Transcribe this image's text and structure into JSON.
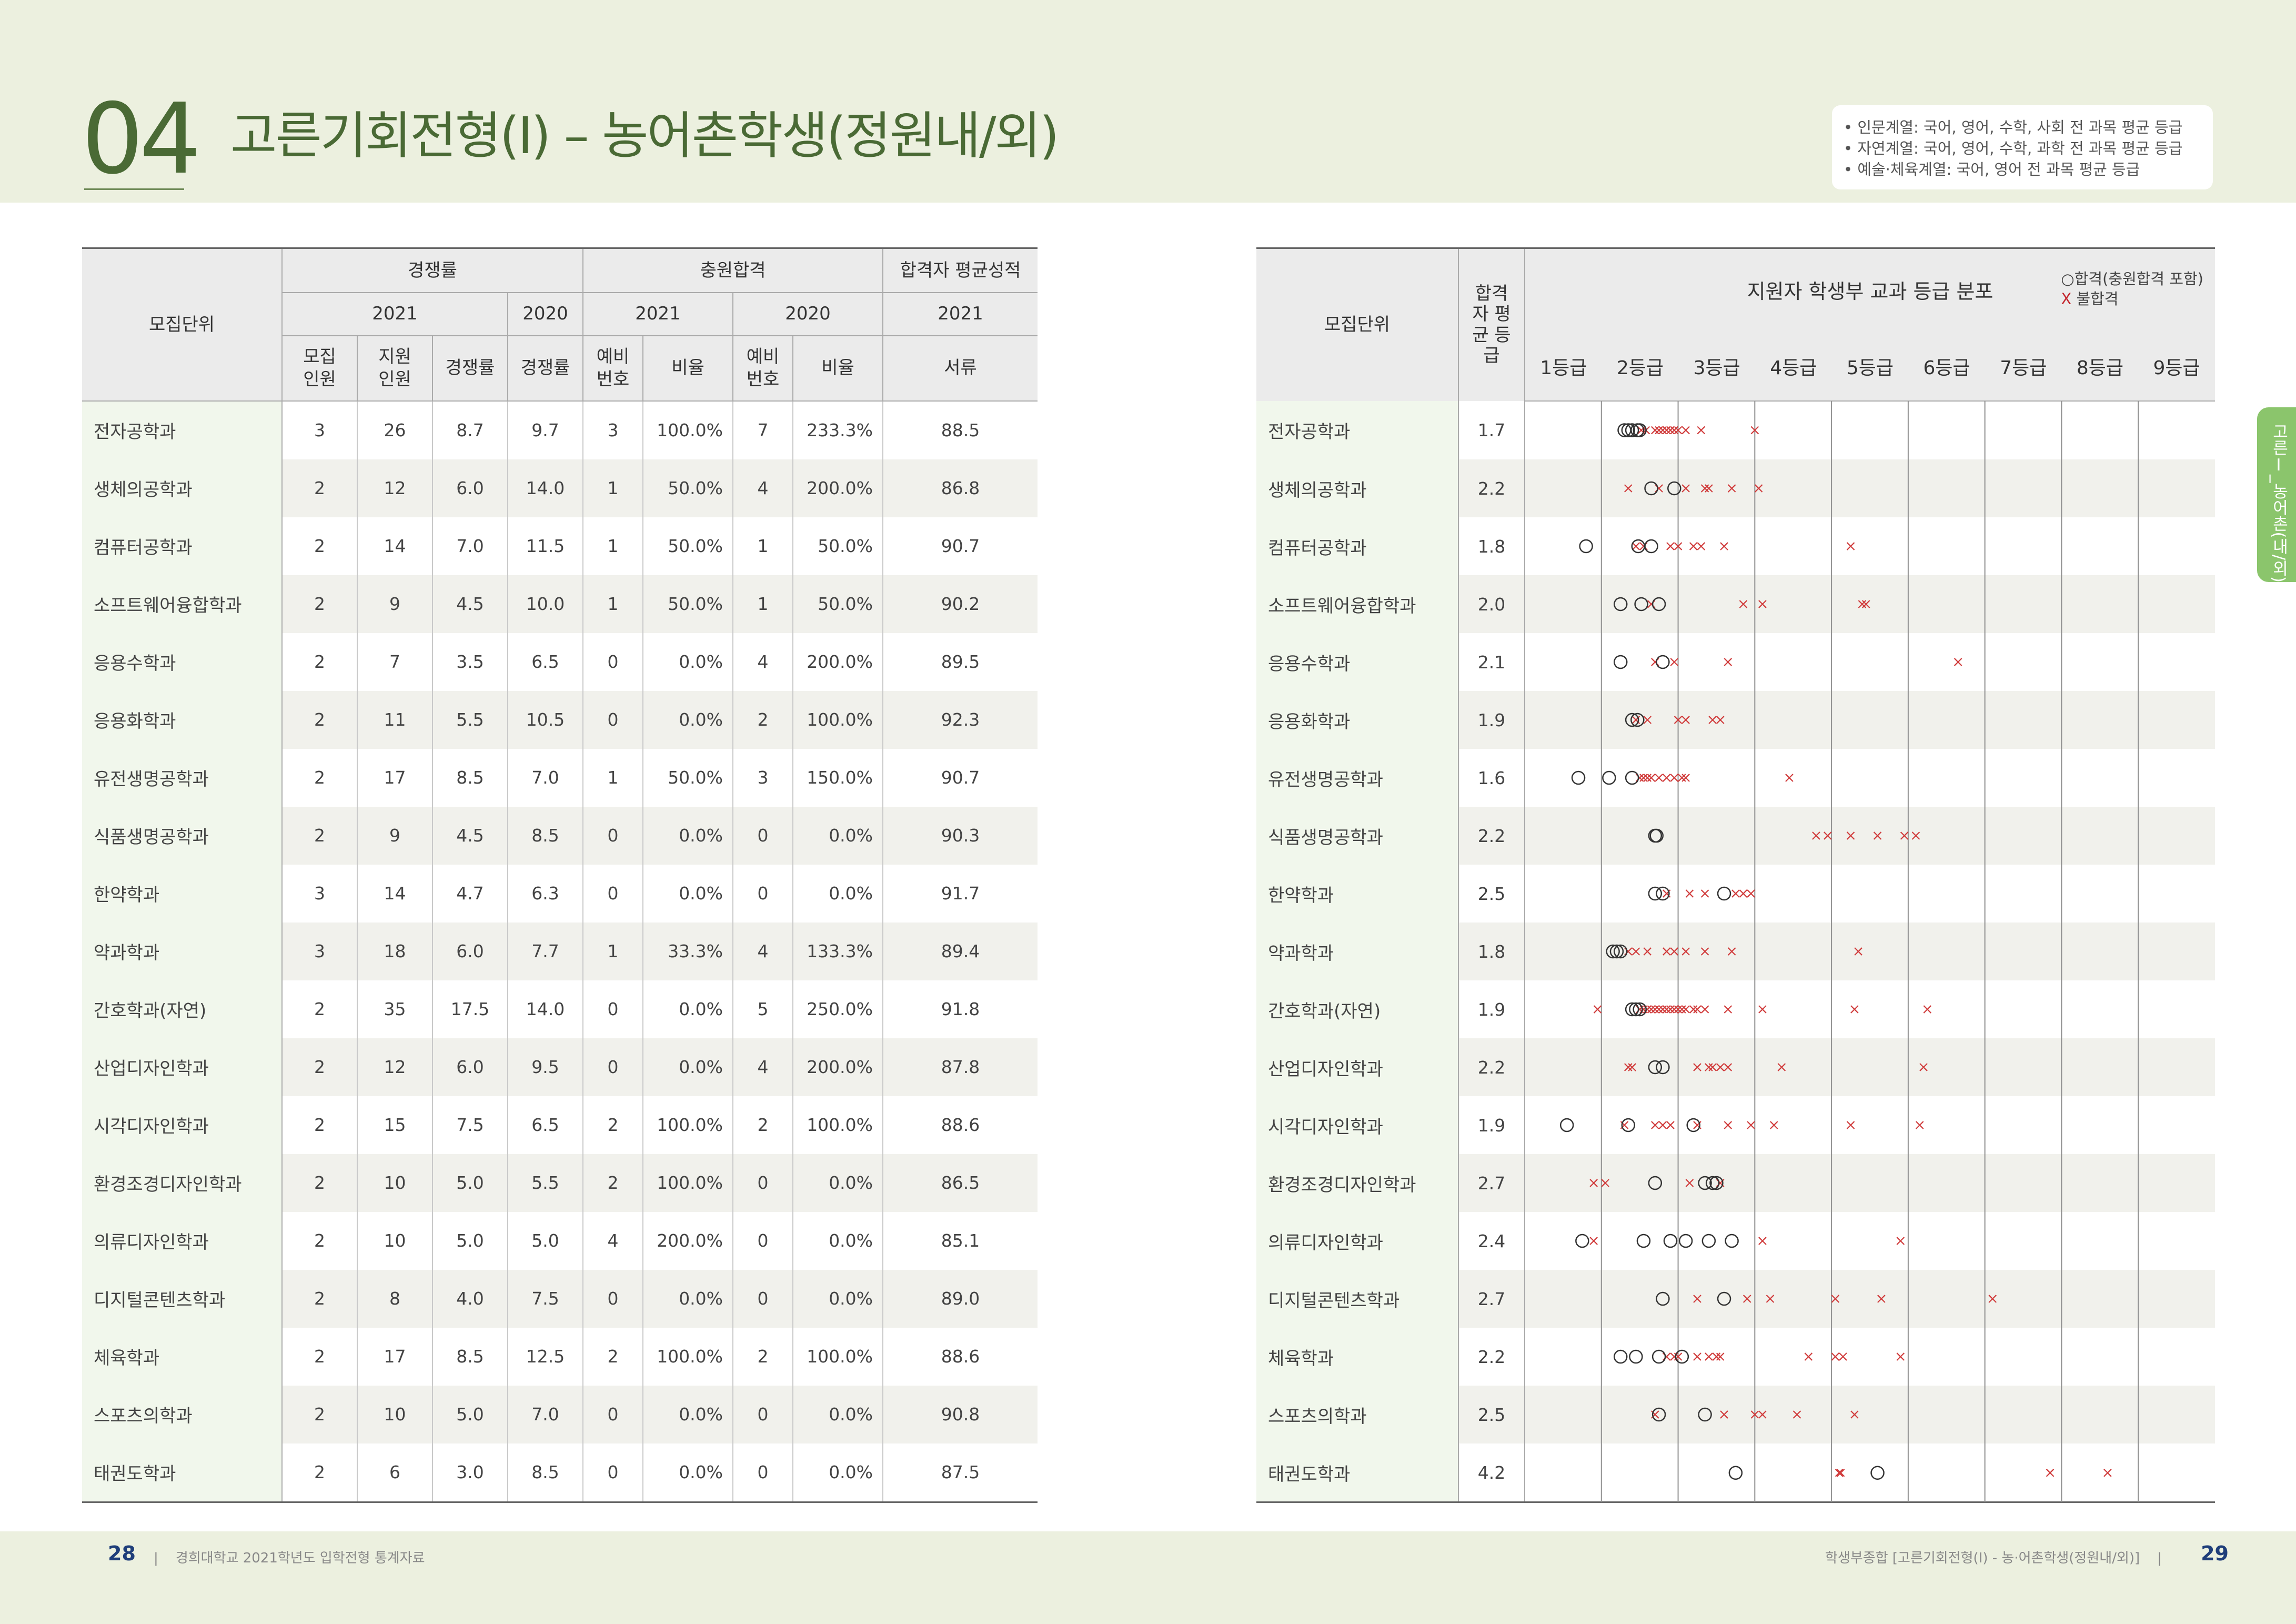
{
  "header": {
    "number": "04",
    "title": "고른기회전형(Ⅰ) – 농어촌학생(정원내/외)",
    "notes": [
      "• 인문계열: 국어, 영어, 수학, 사회 전 과목 평균 등급",
      "• 자연계열: 국어, 영어, 수학, 과학 전 과목 평균 등급",
      "• 예술·체육계열: 국어, 영어 전 과목 평균 등급"
    ]
  },
  "left_table": {
    "head_unit": "모집단위",
    "group_competition": "경쟁률",
    "group_additional": "충원합격",
    "group_avg": "합격자 평균성적",
    "year_2021": "2021",
    "year_2020": "2020",
    "col_quota": "모집 인원",
    "col_applicants": "지원 인원",
    "col_rate": "경쟁률",
    "col_reserve": "예비 번호",
    "col_ratio": "비율",
    "col_docs": "서류",
    "rows": [
      {
        "name": "전자공학과",
        "quota": "3",
        "applicants": "26",
        "rate2021": "8.7",
        "rate2020": "9.7",
        "res2021": "3",
        "ratio2021": "100.0%",
        "res2020": "7",
        "ratio2020": "233.3%",
        "score": "88.5"
      },
      {
        "name": "생체의공학과",
        "quota": "2",
        "applicants": "12",
        "rate2021": "6.0",
        "rate2020": "14.0",
        "res2021": "1",
        "ratio2021": "50.0%",
        "res2020": "4",
        "ratio2020": "200.0%",
        "score": "86.8"
      },
      {
        "name": "컴퓨터공학과",
        "quota": "2",
        "applicants": "14",
        "rate2021": "7.0",
        "rate2020": "11.5",
        "res2021": "1",
        "ratio2021": "50.0%",
        "res2020": "1",
        "ratio2020": "50.0%",
        "score": "90.7"
      },
      {
        "name": "소프트웨어융합학과",
        "quota": "2",
        "applicants": "9",
        "rate2021": "4.5",
        "rate2020": "10.0",
        "res2021": "1",
        "ratio2021": "50.0%",
        "res2020": "1",
        "ratio2020": "50.0%",
        "score": "90.2"
      },
      {
        "name": "응용수학과",
        "quota": "2",
        "applicants": "7",
        "rate2021": "3.5",
        "rate2020": "6.5",
        "res2021": "0",
        "ratio2021": "0.0%",
        "res2020": "4",
        "ratio2020": "200.0%",
        "score": "89.5"
      },
      {
        "name": "응용화학과",
        "quota": "2",
        "applicants": "11",
        "rate2021": "5.5",
        "rate2020": "10.5",
        "res2021": "0",
        "ratio2021": "0.0%",
        "res2020": "2",
        "ratio2020": "100.0%",
        "score": "92.3"
      },
      {
        "name": "유전생명공학과",
        "quota": "2",
        "applicants": "17",
        "rate2021": "8.5",
        "rate2020": "7.0",
        "res2021": "1",
        "ratio2021": "50.0%",
        "res2020": "3",
        "ratio2020": "150.0%",
        "score": "90.7"
      },
      {
        "name": "식품생명공학과",
        "quota": "2",
        "applicants": "9",
        "rate2021": "4.5",
        "rate2020": "8.5",
        "res2021": "0",
        "ratio2021": "0.0%",
        "res2020": "0",
        "ratio2020": "0.0%",
        "score": "90.3"
      },
      {
        "name": "한약학과",
        "quota": "3",
        "applicants": "14",
        "rate2021": "4.7",
        "rate2020": "6.3",
        "res2021": "0",
        "ratio2021": "0.0%",
        "res2020": "0",
        "ratio2020": "0.0%",
        "score": "91.7"
      },
      {
        "name": "약과학과",
        "quota": "3",
        "applicants": "18",
        "rate2021": "6.0",
        "rate2020": "7.7",
        "res2021": "1",
        "ratio2021": "33.3%",
        "res2020": "4",
        "ratio2020": "133.3%",
        "score": "89.4"
      },
      {
        "name": "간호학과(자연)",
        "quota": "2",
        "applicants": "35",
        "rate2021": "17.5",
        "rate2020": "14.0",
        "res2021": "0",
        "ratio2021": "0.0%",
        "res2020": "5",
        "ratio2020": "250.0%",
        "score": "91.8"
      },
      {
        "name": "산업디자인학과",
        "quota": "2",
        "applicants": "12",
        "rate2021": "6.0",
        "rate2020": "9.5",
        "res2021": "0",
        "ratio2021": "0.0%",
        "res2020": "4",
        "ratio2020": "200.0%",
        "score": "87.8"
      },
      {
        "name": "시각디자인학과",
        "quota": "2",
        "applicants": "15",
        "rate2021": "7.5",
        "rate2020": "6.5",
        "res2021": "2",
        "ratio2021": "100.0%",
        "res2020": "2",
        "ratio2020": "100.0%",
        "score": "88.6"
      },
      {
        "name": "환경조경디자인학과",
        "quota": "2",
        "applicants": "10",
        "rate2021": "5.0",
        "rate2020": "5.5",
        "res2021": "2",
        "ratio2021": "100.0%",
        "res2020": "0",
        "ratio2020": "0.0%",
        "score": "86.5"
      },
      {
        "name": "의류디자인학과",
        "quota": "2",
        "applicants": "10",
        "rate2021": "5.0",
        "rate2020": "5.0",
        "res2021": "4",
        "ratio2021": "200.0%",
        "res2020": "0",
        "ratio2020": "0.0%",
        "score": "85.1"
      },
      {
        "name": "디지털콘텐츠학과",
        "quota": "2",
        "applicants": "8",
        "rate2021": "4.0",
        "rate2020": "7.5",
        "res2021": "0",
        "ratio2021": "0.0%",
        "res2020": "0",
        "ratio2020": "0.0%",
        "score": "89.0"
      },
      {
        "name": "체육학과",
        "quota": "2",
        "applicants": "17",
        "rate2021": "8.5",
        "rate2020": "12.5",
        "res2021": "2",
        "ratio2021": "100.0%",
        "res2020": "2",
        "ratio2020": "100.0%",
        "score": "88.6"
      },
      {
        "name": "스포츠의학과",
        "quota": "2",
        "applicants": "10",
        "rate2021": "5.0",
        "rate2020": "7.0",
        "res2021": "0",
        "ratio2021": "0.0%",
        "res2020": "0",
        "ratio2020": "0.0%",
        "score": "90.8"
      },
      {
        "name": "태권도학과",
        "quota": "2",
        "applicants": "6",
        "rate2021": "3.0",
        "rate2020": "8.5",
        "res2021": "0",
        "ratio2021": "0.0%",
        "res2020": "0",
        "ratio2020": "0.0%",
        "score": "87.5"
      }
    ]
  },
  "right_table": {
    "head_unit": "모집단위",
    "head_grade": "합격자 평균 등급",
    "chart_title": "지원자 학생부 교과 등급 분포",
    "legend_pass": "○합격(충원합격 포함)",
    "legend_fail_mark": "X",
    "legend_fail": " 불합격",
    "grade_labels": [
      "1등급",
      "2등급",
      "3등급",
      "4등급",
      "5등급",
      "6등급",
      "7등급",
      "8등급",
      "9등급"
    ]
  },
  "chart_data": {
    "type": "scatter",
    "title": "지원자 학생부 교과 등급 분포",
    "x_range": [
      1,
      9
    ],
    "marker_pass": "○",
    "marker_fail": "×",
    "series": [
      {
        "name": "전자공학과",
        "avg": "1.7",
        "pass": [
          1.8,
          1.85,
          1.9,
          1.97,
          2.0
        ],
        "fail": [
          2.02,
          2.08,
          2.2,
          2.25,
          2.3,
          2.35,
          2.4,
          2.45,
          2.5,
          2.6,
          2.8,
          3.5
        ]
      },
      {
        "name": "생체의공학과",
        "avg": "2.2",
        "pass": [
          2.15,
          2.45
        ],
        "fail": [
          1.85,
          2.25,
          2.6,
          2.85,
          2.9,
          3.2,
          3.55
        ]
      },
      {
        "name": "컴퓨터공학과",
        "avg": "1.8",
        "pass": [
          1.3,
          1.98,
          2.15
        ],
        "fail": [
          1.95,
          2.05,
          2.4,
          2.5,
          2.7,
          2.8,
          3.1,
          4.75
        ]
      },
      {
        "name": "소프트웨어융합학과",
        "avg": "2.0",
        "pass": [
          1.75,
          2.02,
          2.25
        ],
        "fail": [
          2.15,
          3.35,
          3.6,
          4.9,
          4.95
        ]
      },
      {
        "name": "응용수학과",
        "avg": "2.1",
        "pass": [
          1.75,
          2.3
        ],
        "fail": [
          2.2,
          2.45,
          3.15,
          6.15
        ]
      },
      {
        "name": "응용화학과",
        "avg": "1.9",
        "pass": [
          1.9,
          1.97
        ],
        "fail": [
          1.95,
          2.1,
          2.5,
          2.6,
          2.95,
          3.05
        ]
      },
      {
        "name": "유전생명공학과",
        "avg": "1.6",
        "pass": [
          1.2,
          1.6,
          1.9
        ],
        "fail": [
          2.0,
          2.05,
          2.1,
          2.15,
          2.25,
          2.35,
          2.45,
          2.55,
          2.6,
          3.95
        ]
      },
      {
        "name": "식품생명공학과",
        "avg": "2.2",
        "pass": [
          2.2,
          2.22
        ],
        "fail": [
          4.3,
          4.45,
          4.75,
          5.1,
          5.45,
          5.6
        ]
      },
      {
        "name": "한약학과",
        "avg": "2.5",
        "pass": [
          2.2,
          2.3,
          3.1
        ],
        "fail": [
          2.35,
          2.65,
          2.85,
          3.25,
          3.35,
          3.45
        ]
      },
      {
        "name": "약과학과",
        "avg": "1.8",
        "pass": [
          1.65,
          1.7,
          1.75
        ],
        "fail": [
          1.85,
          1.95,
          2.1,
          2.35,
          2.45,
          2.6,
          2.85,
          3.2,
          4.85
        ]
      },
      {
        "name": "간호학과(자연)",
        "avg": "1.9",
        "pass": [
          1.9,
          1.95,
          2.0
        ],
        "fail": [
          1.45,
          2.0,
          2.05,
          2.1,
          2.15,
          2.2,
          2.25,
          2.3,
          2.35,
          2.4,
          2.45,
          2.5,
          2.55,
          2.6,
          2.7,
          2.75,
          2.85,
          3.15,
          3.6,
          4.8,
          5.75
        ]
      },
      {
        "name": "산업디자인학과",
        "avg": "2.2",
        "pass": [
          2.2,
          2.3
        ],
        "fail": [
          1.85,
          1.9,
          2.75,
          2.9,
          2.95,
          3.05,
          3.15,
          3.85,
          5.7
        ]
      },
      {
        "name": "시각디자인학과",
        "avg": "1.9",
        "pass": [
          1.05,
          1.85,
          2.7
        ],
        "fail": [
          1.8,
          2.2,
          2.3,
          2.4,
          2.75,
          3.15,
          3.45,
          3.75,
          4.75,
          5.65
        ]
      },
      {
        "name": "환경조경디자인학과",
        "avg": "2.7",
        "pass": [
          2.2,
          2.85,
          2.95,
          3.0
        ],
        "fail": [
          1.4,
          1.55,
          2.65,
          3.05
        ]
      },
      {
        "name": "의류디자인학과",
        "avg": "2.4",
        "pass": [
          1.25,
          2.05,
          2.4,
          2.6,
          2.9,
          3.2
        ],
        "fail": [
          1.4,
          3.6,
          5.4
        ]
      },
      {
        "name": "디지털콘텐츠학과",
        "avg": "2.7",
        "pass": [
          2.3,
          3.1
        ],
        "fail": [
          2.75,
          3.4,
          3.7,
          4.55,
          5.15,
          6.6
        ]
      },
      {
        "name": "체육학과",
        "avg": "2.2",
        "pass": [
          1.75,
          1.95,
          2.25,
          2.55
        ],
        "fail": [
          2.35,
          2.45,
          2.5,
          2.75,
          2.9,
          3.0,
          3.05,
          4.2,
          4.55,
          4.65,
          5.4
        ]
      },
      {
        "name": "스포츠의학과",
        "avg": "2.5",
        "pass": [
          2.25,
          2.85
        ],
        "fail": [
          2.2,
          3.1,
          3.5,
          3.6,
          4.05,
          4.8
        ]
      },
      {
        "name": "태권도학과",
        "avg": "4.2",
        "pass": [
          3.25,
          5.1
        ],
        "fail": [
          4.6,
          4.62,
          7.35,
          8.1
        ]
      }
    ]
  },
  "side_tab": "고른Ⅰ_농어촌(내/외)",
  "footer": {
    "left_page": "28",
    "left_text": "경희대학교 2021학년도 입학전형 통계자료",
    "right_text": "학생부종합 [고른기회전형(Ⅰ) - 농·어촌학생(정원내/외)]",
    "right_page": "29"
  }
}
